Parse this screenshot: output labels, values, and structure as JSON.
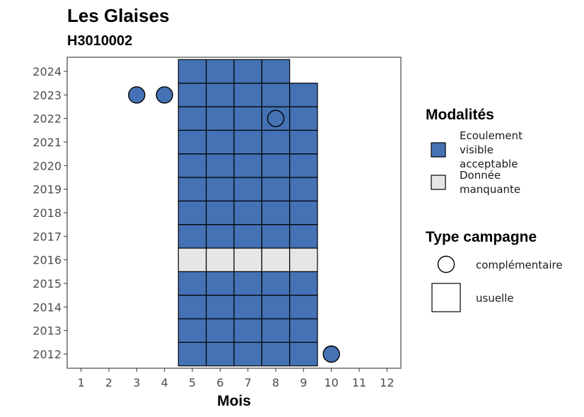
{
  "chart_data": {
    "type": "heatmap",
    "title": "Les Glaises",
    "subtitle": "H3010002",
    "xlabel": "Mois",
    "ylabel": "",
    "x_ticks": [
      "1",
      "2",
      "3",
      "4",
      "5",
      "6",
      "7",
      "8",
      "9",
      "10",
      "11",
      "12"
    ],
    "y_ticks": [
      "2012",
      "2013",
      "2014",
      "2015",
      "2016",
      "2017",
      "2018",
      "2019",
      "2020",
      "2021",
      "2022",
      "2023",
      "2024"
    ],
    "xlim": [
      0.5,
      12.5
    ],
    "ylim": [
      2011.4,
      2024.6
    ],
    "colors": {
      "Ecoulement visible acceptable": "#4472b4",
      "Donnée manquante": "#e6e6e6"
    },
    "cells": [
      {
        "year": 2012,
        "month": 5,
        "modalite": "Ecoulement visible acceptable",
        "campagne": "usuelle"
      },
      {
        "year": 2012,
        "month": 6,
        "modalite": "Ecoulement visible acceptable",
        "campagne": "usuelle"
      },
      {
        "year": 2012,
        "month": 7,
        "modalite": "Ecoulement visible acceptable",
        "campagne": "usuelle"
      },
      {
        "year": 2012,
        "month": 8,
        "modalite": "Ecoulement visible acceptable",
        "campagne": "usuelle"
      },
      {
        "year": 2012,
        "month": 9,
        "modalite": "Ecoulement visible acceptable",
        "campagne": "usuelle"
      },
      {
        "year": 2012,
        "month": 10,
        "modalite": "Ecoulement visible acceptable",
        "campagne": "complémentaire"
      },
      {
        "year": 2013,
        "month": 5,
        "modalite": "Ecoulement visible acceptable",
        "campagne": "usuelle"
      },
      {
        "year": 2013,
        "month": 6,
        "modalite": "Ecoulement visible acceptable",
        "campagne": "usuelle"
      },
      {
        "year": 2013,
        "month": 7,
        "modalite": "Ecoulement visible acceptable",
        "campagne": "usuelle"
      },
      {
        "year": 2013,
        "month": 8,
        "modalite": "Ecoulement visible acceptable",
        "campagne": "usuelle"
      },
      {
        "year": 2013,
        "month": 9,
        "modalite": "Ecoulement visible acceptable",
        "campagne": "usuelle"
      },
      {
        "year": 2014,
        "month": 5,
        "modalite": "Ecoulement visible acceptable",
        "campagne": "usuelle"
      },
      {
        "year": 2014,
        "month": 6,
        "modalite": "Ecoulement visible acceptable",
        "campagne": "usuelle"
      },
      {
        "year": 2014,
        "month": 7,
        "modalite": "Ecoulement visible acceptable",
        "campagne": "usuelle"
      },
      {
        "year": 2014,
        "month": 8,
        "modalite": "Ecoulement visible acceptable",
        "campagne": "usuelle"
      },
      {
        "year": 2014,
        "month": 9,
        "modalite": "Ecoulement visible acceptable",
        "campagne": "usuelle"
      },
      {
        "year": 2015,
        "month": 5,
        "modalite": "Ecoulement visible acceptable",
        "campagne": "usuelle"
      },
      {
        "year": 2015,
        "month": 6,
        "modalite": "Ecoulement visible acceptable",
        "campagne": "usuelle"
      },
      {
        "year": 2015,
        "month": 7,
        "modalite": "Ecoulement visible acceptable",
        "campagne": "usuelle"
      },
      {
        "year": 2015,
        "month": 8,
        "modalite": "Ecoulement visible acceptable",
        "campagne": "usuelle"
      },
      {
        "year": 2015,
        "month": 9,
        "modalite": "Ecoulement visible acceptable",
        "campagne": "usuelle"
      },
      {
        "year": 2016,
        "month": 5,
        "modalite": "Donnée manquante",
        "campagne": "usuelle"
      },
      {
        "year": 2016,
        "month": 6,
        "modalite": "Donnée manquante",
        "campagne": "usuelle"
      },
      {
        "year": 2016,
        "month": 7,
        "modalite": "Donnée manquante",
        "campagne": "usuelle"
      },
      {
        "year": 2016,
        "month": 8,
        "modalite": "Donnée manquante",
        "campagne": "usuelle"
      },
      {
        "year": 2016,
        "month": 9,
        "modalite": "Donnée manquante",
        "campagne": "usuelle"
      },
      {
        "year": 2017,
        "month": 5,
        "modalite": "Ecoulement visible acceptable",
        "campagne": "usuelle"
      },
      {
        "year": 2017,
        "month": 6,
        "modalite": "Ecoulement visible acceptable",
        "campagne": "usuelle"
      },
      {
        "year": 2017,
        "month": 7,
        "modalite": "Ecoulement visible acceptable",
        "campagne": "usuelle"
      },
      {
        "year": 2017,
        "month": 8,
        "modalite": "Ecoulement visible acceptable",
        "campagne": "usuelle"
      },
      {
        "year": 2017,
        "month": 9,
        "modalite": "Ecoulement visible acceptable",
        "campagne": "usuelle"
      },
      {
        "year": 2018,
        "month": 5,
        "modalite": "Ecoulement visible acceptable",
        "campagne": "usuelle"
      },
      {
        "year": 2018,
        "month": 6,
        "modalite": "Ecoulement visible acceptable",
        "campagne": "usuelle"
      },
      {
        "year": 2018,
        "month": 7,
        "modalite": "Ecoulement visible acceptable",
        "campagne": "usuelle"
      },
      {
        "year": 2018,
        "month": 8,
        "modalite": "Ecoulement visible acceptable",
        "campagne": "usuelle"
      },
      {
        "year": 2018,
        "month": 9,
        "modalite": "Ecoulement visible acceptable",
        "campagne": "usuelle"
      },
      {
        "year": 2019,
        "month": 5,
        "modalite": "Ecoulement visible acceptable",
        "campagne": "usuelle"
      },
      {
        "year": 2019,
        "month": 6,
        "modalite": "Ecoulement visible acceptable",
        "campagne": "usuelle"
      },
      {
        "year": 2019,
        "month": 7,
        "modalite": "Ecoulement visible acceptable",
        "campagne": "usuelle"
      },
      {
        "year": 2019,
        "month": 8,
        "modalite": "Ecoulement visible acceptable",
        "campagne": "usuelle"
      },
      {
        "year": 2019,
        "month": 9,
        "modalite": "Ecoulement visible acceptable",
        "campagne": "usuelle"
      },
      {
        "year": 2020,
        "month": 5,
        "modalite": "Ecoulement visible acceptable",
        "campagne": "usuelle"
      },
      {
        "year": 2020,
        "month": 6,
        "modalite": "Ecoulement visible acceptable",
        "campagne": "usuelle"
      },
      {
        "year": 2020,
        "month": 7,
        "modalite": "Ecoulement visible acceptable",
        "campagne": "usuelle"
      },
      {
        "year": 2020,
        "month": 8,
        "modalite": "Ecoulement visible acceptable",
        "campagne": "usuelle"
      },
      {
        "year": 2020,
        "month": 9,
        "modalite": "Ecoulement visible acceptable",
        "campagne": "usuelle"
      },
      {
        "year": 2021,
        "month": 5,
        "modalite": "Ecoulement visible acceptable",
        "campagne": "usuelle"
      },
      {
        "year": 2021,
        "month": 6,
        "modalite": "Ecoulement visible acceptable",
        "campagne": "usuelle"
      },
      {
        "year": 2021,
        "month": 7,
        "modalite": "Ecoulement visible acceptable",
        "campagne": "usuelle"
      },
      {
        "year": 2021,
        "month": 8,
        "modalite": "Ecoulement visible acceptable",
        "campagne": "usuelle"
      },
      {
        "year": 2021,
        "month": 9,
        "modalite": "Ecoulement visible acceptable",
        "campagne": "usuelle"
      },
      {
        "year": 2022,
        "month": 5,
        "modalite": "Ecoulement visible acceptable",
        "campagne": "usuelle"
      },
      {
        "year": 2022,
        "month": 6,
        "modalite": "Ecoulement visible acceptable",
        "campagne": "usuelle"
      },
      {
        "year": 2022,
        "month": 7,
        "modalite": "Ecoulement visible acceptable",
        "campagne": "usuelle"
      },
      {
        "year": 2022,
        "month": 8,
        "modalite": "Ecoulement visible acceptable",
        "campagne": "usuelle"
      },
      {
        "year": 2022,
        "month": 8,
        "modalite": "Ecoulement visible acceptable",
        "campagne": "complémentaire"
      },
      {
        "year": 2022,
        "month": 9,
        "modalite": "Ecoulement visible acceptable",
        "campagne": "usuelle"
      },
      {
        "year": 2023,
        "month": 3,
        "modalite": "Ecoulement visible acceptable",
        "campagne": "complémentaire"
      },
      {
        "year": 2023,
        "month": 4,
        "modalite": "Ecoulement visible acceptable",
        "campagne": "complémentaire"
      },
      {
        "year": 2023,
        "month": 5,
        "modalite": "Ecoulement visible acceptable",
        "campagne": "usuelle"
      },
      {
        "year": 2023,
        "month": 6,
        "modalite": "Ecoulement visible acceptable",
        "campagne": "usuelle"
      },
      {
        "year": 2023,
        "month": 7,
        "modalite": "Ecoulement visible acceptable",
        "campagne": "usuelle"
      },
      {
        "year": 2023,
        "month": 8,
        "modalite": "Ecoulement visible acceptable",
        "campagne": "usuelle"
      },
      {
        "year": 2023,
        "month": 9,
        "modalite": "Ecoulement visible acceptable",
        "campagne": "usuelle"
      },
      {
        "year": 2024,
        "month": 5,
        "modalite": "Ecoulement visible acceptable",
        "campagne": "usuelle"
      },
      {
        "year": 2024,
        "month": 6,
        "modalite": "Ecoulement visible acceptable",
        "campagne": "usuelle"
      },
      {
        "year": 2024,
        "month": 7,
        "modalite": "Ecoulement visible acceptable",
        "campagne": "usuelle"
      },
      {
        "year": 2024,
        "month": 8,
        "modalite": "Ecoulement visible acceptable",
        "campagne": "usuelle"
      }
    ],
    "legends": [
      {
        "title": "Modalités",
        "entries": [
          {
            "label": "Ecoulement visible acceptable",
            "lines": [
              "Ecoulement",
              "visible",
              "acceptable"
            ],
            "color": "#4472b4"
          },
          {
            "label": "Donnée manquante",
            "lines": [
              "Donnée",
              "manquante"
            ],
            "color": "#e6e6e6"
          }
        ]
      },
      {
        "title": "Type campagne",
        "entries": [
          {
            "label": "complémentaire",
            "shape": "circle"
          },
          {
            "label": "usuelle",
            "shape": "square"
          }
        ]
      }
    ],
    "legend_position": "right",
    "grid": false
  }
}
